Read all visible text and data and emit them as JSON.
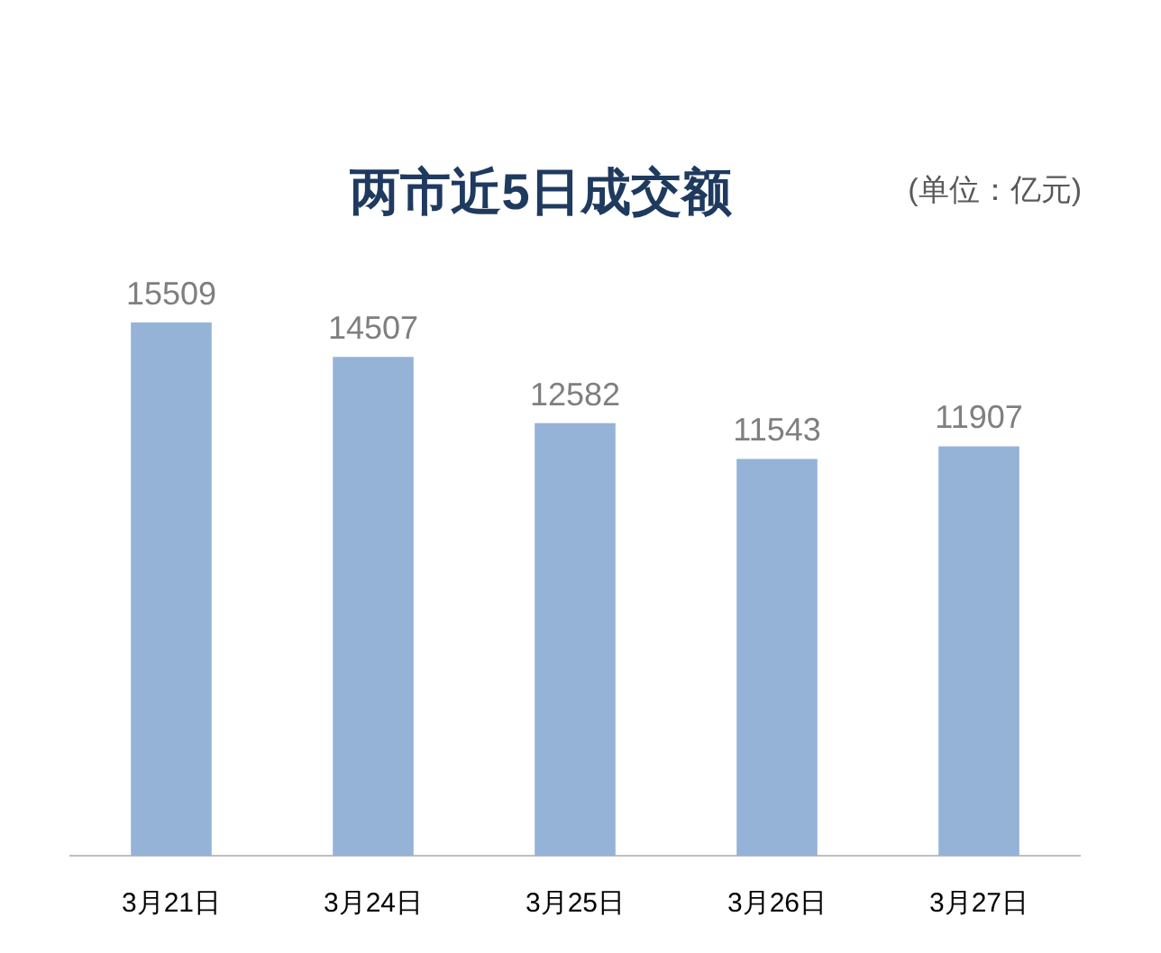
{
  "chart_data": {
    "type": "bar",
    "title": "两市近5日成交额",
    "annotations": [
      "(单位：亿元)"
    ],
    "categories": [
      "3月21日",
      "3月24日",
      "3月25日",
      "3月26日",
      "3月27日"
    ],
    "values": [
      15509,
      14507,
      12582,
      11543,
      11907
    ],
    "color": "#95b3d7",
    "data_labels": true,
    "grid": false,
    "legend": false,
    "tick_labels": "x"
  }
}
